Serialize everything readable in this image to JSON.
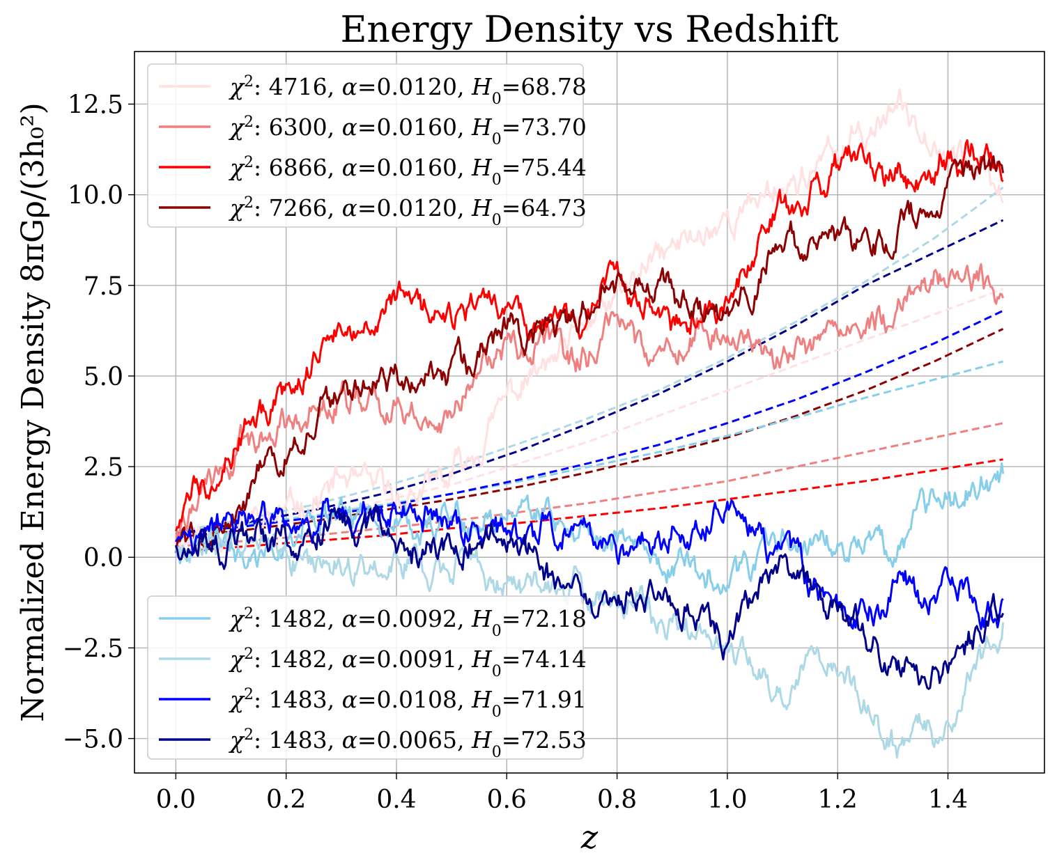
{
  "chart_data": {
    "type": "line",
    "title": "Energy Density vs Redshift",
    "xlabel": "z",
    "ylabel": "Normalized Energy Density 8πGρ/(3h₀²)",
    "xlim": [
      -0.075,
      1.575
    ],
    "ylim": [
      -5.95,
      13.95
    ],
    "xticks": [
      0.0,
      0.2,
      0.4,
      0.6,
      0.8,
      1.0,
      1.2,
      1.4
    ],
    "xtick_labels": [
      "0.0",
      "0.2",
      "0.4",
      "0.6",
      "0.8",
      "1.0",
      "1.2",
      "1.4"
    ],
    "yticks": [
      -5.0,
      -2.5,
      0.0,
      2.5,
      5.0,
      7.5,
      10.0,
      12.5
    ],
    "ytick_labels": [
      "−5.0",
      "−2.5",
      "0.0",
      "2.5",
      "5.0",
      "7.5",
      "10.0",
      "12.5"
    ],
    "grid": true,
    "legends": [
      {
        "placement": "upper-left",
        "entries": [
          0,
          1,
          2,
          3
        ]
      },
      {
        "placement": "lower-left",
        "entries": [
          4,
          5,
          6,
          7
        ]
      }
    ],
    "x_knots": [
      0.0,
      0.1,
      0.2,
      0.3,
      0.4,
      0.5,
      0.6,
      0.7,
      0.8,
      0.9,
      1.0,
      1.1,
      1.2,
      1.3,
      1.4,
      1.5
    ],
    "series": [
      {
        "name": "χ²: 4716, α=0.0120, H₀=68.78",
        "legend": {
          "chi2": "4716",
          "alpha": "0.0120",
          "h0": "68.78"
        },
        "color": "#ffe1e1",
        "seed": 11,
        "noisy": [
          0.6,
          1.0,
          1.5,
          2.2,
          1.6,
          2.0,
          4.6,
          5.3,
          6.9,
          8.4,
          9.2,
          10.3,
          11.0,
          12.7,
          11.4,
          9.9
        ],
        "fit": [
          0.45,
          0.75,
          1.1,
          1.55,
          2.0,
          2.6,
          3.2,
          3.9,
          4.6,
          5.3,
          6.0,
          6.7,
          7.4
        ]
      },
      {
        "name": "χ²: 6300, α=0.0160, H₀=73.70",
        "legend": {
          "chi2": "6300",
          "alpha": "0.0160",
          "h0": "73.70"
        },
        "color": "#f08080",
        "seed": 22,
        "noisy": [
          0.6,
          2.6,
          3.9,
          4.9,
          4.1,
          3.8,
          5.7,
          5.6,
          5.9,
          5.8,
          6.4,
          5.6,
          6.3,
          6.8,
          8.0,
          7.3
        ],
        "fit": [
          0.3,
          0.45,
          0.6,
          0.8,
          1.0,
          1.25,
          1.5,
          1.8,
          2.1,
          2.5,
          2.9,
          3.3,
          3.7
        ]
      },
      {
        "name": "χ²: 6866, α=0.0160, H₀=75.44",
        "legend": {
          "chi2": "6866",
          "alpha": "0.0160",
          "h0": "75.44"
        },
        "color": "#ff0000",
        "seed": 33,
        "noisy": [
          0.9,
          3.3,
          4.6,
          6.4,
          7.1,
          6.4,
          6.4,
          6.6,
          7.9,
          6.4,
          6.9,
          9.4,
          10.5,
          10.4,
          11.4,
          11.1
        ],
        "fit": [
          0.15,
          0.3,
          0.45,
          0.6,
          0.8,
          0.95,
          1.15,
          1.35,
          1.6,
          1.85,
          2.1,
          2.4,
          2.7
        ]
      },
      {
        "name": "χ²: 7266, α=0.0120, H₀=64.73",
        "legend": {
          "chi2": "7266",
          "alpha": "0.0120",
          "h0": "64.73"
        },
        "color": "#8b0000",
        "seed": 44,
        "noisy": [
          0.3,
          1.1,
          2.7,
          4.3,
          5.1,
          4.9,
          6.2,
          6.5,
          7.6,
          7.1,
          6.6,
          8.6,
          8.9,
          8.6,
          10.3,
          10.6
        ],
        "fit": [
          0.55,
          0.75,
          1.0,
          1.3,
          1.6,
          1.95,
          2.35,
          2.8,
          3.3,
          3.9,
          4.6,
          5.4,
          6.3
        ]
      },
      {
        "name": "χ²: 1482, α=0.0092, H₀=72.18",
        "legend": {
          "chi2": "1482",
          "alpha": "0.0092",
          "h0": "72.18"
        },
        "color": "#87ceeb",
        "seed": 55,
        "noisy": [
          0.4,
          0.5,
          0.6,
          0.8,
          0.9,
          1.1,
          1.5,
          1.2,
          0.4,
          -0.1,
          -0.7,
          0.4,
          0.0,
          0.2,
          1.1,
          1.9
        ],
        "fit": [
          0.65,
          0.9,
          1.15,
          1.45,
          1.75,
          2.1,
          2.5,
          2.9,
          3.35,
          3.85,
          4.4,
          4.9,
          5.4
        ]
      },
      {
        "name": "χ²: 1482, α=0.0091, H₀=74.14",
        "legend": {
          "chi2": "1482",
          "alpha": "0.0091",
          "h0": "74.14"
        },
        "color": "#add8e6",
        "seed": 66,
        "noisy": [
          0.5,
          0.4,
          0.1,
          0.0,
          -0.1,
          -0.3,
          -0.5,
          -0.7,
          -1.0,
          -1.8,
          -2.6,
          -3.5,
          -2.6,
          -4.9,
          -4.6,
          -1.9
        ],
        "fit": [
          0.7,
          1.05,
          1.45,
          1.95,
          2.5,
          3.15,
          3.85,
          4.6,
          5.5,
          6.5,
          7.6,
          8.8,
          10.2
        ]
      },
      {
        "name": "χ²: 1483, α=0.0108, H₀=71.91",
        "legend": {
          "chi2": "1483",
          "alpha": "0.0108",
          "h0": "71.91"
        },
        "color": "#0000ff",
        "seed": 77,
        "noisy": [
          0.6,
          0.7,
          0.8,
          0.9,
          1.0,
          0.8,
          0.2,
          0.5,
          -0.2,
          0.6,
          0.6,
          0.1,
          -1.6,
          -1.2,
          -0.6,
          -1.0
        ],
        "fit": [
          0.65,
          0.85,
          1.1,
          1.4,
          1.75,
          2.15,
          2.6,
          3.1,
          3.7,
          4.35,
          5.1,
          5.9,
          6.8
        ]
      },
      {
        "name": "χ²: 1483, α=0.0065, H₀=72.53",
        "legend": {
          "chi2": "1483",
          "alpha": "0.0065",
          "h0": "72.53"
        },
        "color": "#00008b",
        "seed": 88,
        "noisy": [
          0.5,
          0.6,
          0.4,
          0.3,
          0.0,
          0.1,
          0.0,
          -0.6,
          -0.9,
          -1.2,
          -1.7,
          -0.3,
          -1.8,
          -3.2,
          -3.4,
          -1.6
        ],
        "fit": [
          0.65,
          0.95,
          1.3,
          1.75,
          2.3,
          2.95,
          3.7,
          4.5,
          5.4,
          6.4,
          7.5,
          8.4,
          9.3
        ]
      }
    ]
  }
}
